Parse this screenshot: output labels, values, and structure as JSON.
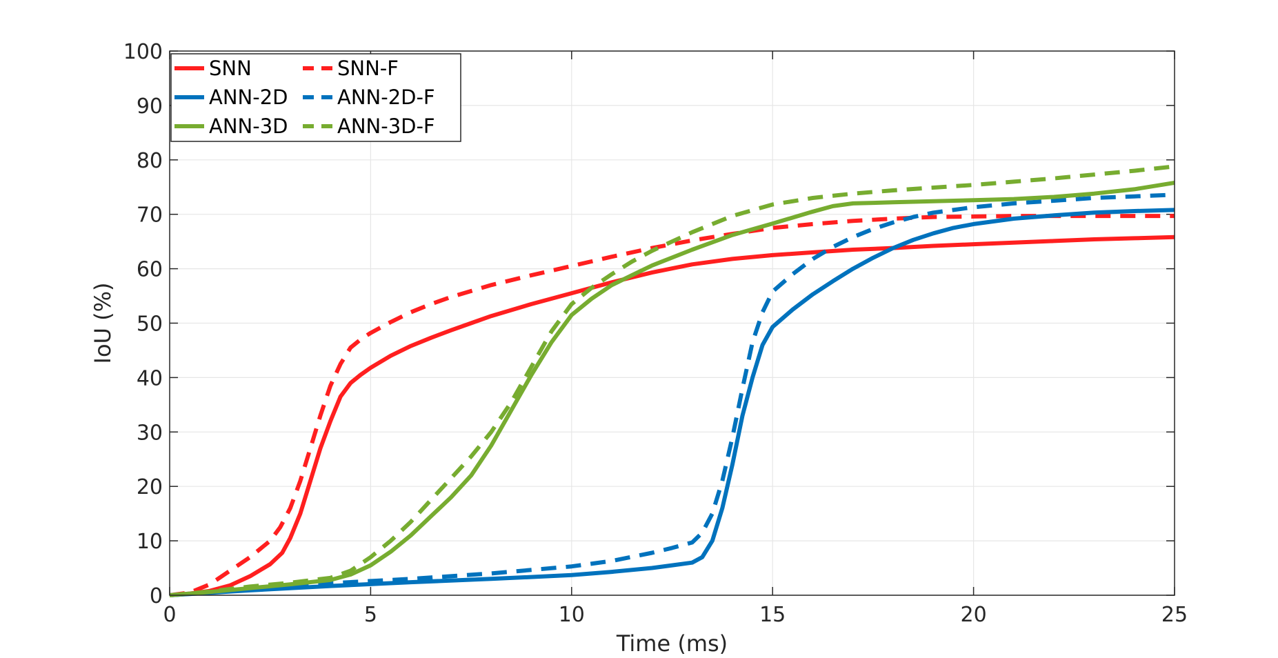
{
  "chart_data": {
    "type": "line",
    "title": "",
    "xlabel": "Time (ms)",
    "ylabel": "IoU (%)",
    "xlim": [
      0,
      25
    ],
    "ylim": [
      0,
      100
    ],
    "xticks": [
      0,
      5,
      10,
      15,
      20,
      25
    ],
    "yticks": [
      0,
      10,
      20,
      30,
      40,
      50,
      60,
      70,
      80,
      90,
      100
    ],
    "grid": true,
    "legend_position": "top-left",
    "series": [
      {
        "name": "SNN",
        "color": "#ff1f1f",
        "style": "solid",
        "points": [
          [
            0,
            0
          ],
          [
            0.5,
            0.3
          ],
          [
            1,
            0.8
          ],
          [
            1.5,
            1.8
          ],
          [
            2,
            3.5
          ],
          [
            2.5,
            5.7
          ],
          [
            2.8,
            7.8
          ],
          [
            3,
            10.5
          ],
          [
            3.25,
            15
          ],
          [
            3.5,
            21
          ],
          [
            3.75,
            27
          ],
          [
            4,
            32
          ],
          [
            4.25,
            36.5
          ],
          [
            4.5,
            39
          ],
          [
            4.75,
            40.5
          ],
          [
            5,
            41.8
          ],
          [
            5.5,
            44
          ],
          [
            6,
            45.8
          ],
          [
            6.5,
            47.3
          ],
          [
            7,
            48.7
          ],
          [
            7.5,
            50
          ],
          [
            8,
            51.3
          ],
          [
            9,
            53.5
          ],
          [
            10,
            55.5
          ],
          [
            11,
            57.5
          ],
          [
            12,
            59.3
          ],
          [
            13,
            60.8
          ],
          [
            14,
            61.8
          ],
          [
            15,
            62.5
          ],
          [
            16,
            63
          ],
          [
            17,
            63.5
          ],
          [
            18,
            63.8
          ],
          [
            19,
            64.2
          ],
          [
            20,
            64.5
          ],
          [
            21,
            64.8
          ],
          [
            22,
            65.1
          ],
          [
            23,
            65.4
          ],
          [
            24,
            65.6
          ],
          [
            25,
            65.8
          ]
        ]
      },
      {
        "name": "SNN-F",
        "color": "#ff1f1f",
        "style": "dashed",
        "points": [
          [
            0,
            0
          ],
          [
            0.5,
            0.5
          ],
          [
            1,
            2
          ],
          [
            1.5,
            4.5
          ],
          [
            2,
            7
          ],
          [
            2.5,
            10
          ],
          [
            2.75,
            12.5
          ],
          [
            3,
            16
          ],
          [
            3.25,
            21
          ],
          [
            3.5,
            27
          ],
          [
            3.75,
            33
          ],
          [
            4,
            38.5
          ],
          [
            4.25,
            42.5
          ],
          [
            4.5,
            45.5
          ],
          [
            4.75,
            47
          ],
          [
            5,
            48.2
          ],
          [
            5.5,
            50.2
          ],
          [
            6,
            52
          ],
          [
            6.5,
            53.5
          ],
          [
            7,
            54.8
          ],
          [
            8,
            57
          ],
          [
            9,
            58.8
          ],
          [
            10,
            60.5
          ],
          [
            11,
            62.2
          ],
          [
            12,
            63.8
          ],
          [
            13,
            65.2
          ],
          [
            14,
            66.4
          ],
          [
            15,
            67.5
          ],
          [
            16,
            68.2
          ],
          [
            17,
            68.8
          ],
          [
            18,
            69.2
          ],
          [
            19,
            69.5
          ],
          [
            20,
            69.6
          ],
          [
            21,
            69.7
          ],
          [
            22,
            69.7
          ],
          [
            23,
            69.7
          ],
          [
            24,
            69.7
          ],
          [
            25,
            69.7
          ]
        ]
      },
      {
        "name": "ANN-2D",
        "color": "#0072bd",
        "style": "solid",
        "points": [
          [
            0,
            0
          ],
          [
            2,
            0.9
          ],
          [
            4,
            1.7
          ],
          [
            6,
            2.4
          ],
          [
            8,
            3
          ],
          [
            10,
            3.7
          ],
          [
            11,
            4.3
          ],
          [
            12,
            5
          ],
          [
            12.5,
            5.5
          ],
          [
            13,
            6
          ],
          [
            13.25,
            7
          ],
          [
            13.5,
            10
          ],
          [
            13.75,
            16
          ],
          [
            14,
            24
          ],
          [
            14.25,
            33
          ],
          [
            14.5,
            40
          ],
          [
            14.75,
            46
          ],
          [
            15,
            49.3
          ],
          [
            15.5,
            52.5
          ],
          [
            16,
            55.3
          ],
          [
            16.5,
            57.7
          ],
          [
            17,
            60
          ],
          [
            17.5,
            62
          ],
          [
            18,
            63.8
          ],
          [
            18.5,
            65.3
          ],
          [
            19,
            66.5
          ],
          [
            19.5,
            67.5
          ],
          [
            20,
            68.2
          ],
          [
            21,
            69.2
          ],
          [
            22,
            69.8
          ],
          [
            23,
            70.3
          ],
          [
            24,
            70.6
          ],
          [
            25,
            70.8
          ]
        ]
      },
      {
        "name": "ANN-2D-F",
        "color": "#0072bd",
        "style": "dashed",
        "points": [
          [
            0,
            0
          ],
          [
            2,
            1
          ],
          [
            4,
            2.2
          ],
          [
            6,
            3
          ],
          [
            8,
            4
          ],
          [
            10,
            5.3
          ],
          [
            11,
            6.3
          ],
          [
            12,
            7.8
          ],
          [
            12.5,
            8.7
          ],
          [
            13,
            9.7
          ],
          [
            13.25,
            11.5
          ],
          [
            13.5,
            15
          ],
          [
            13.75,
            21
          ],
          [
            14,
            29
          ],
          [
            14.25,
            38
          ],
          [
            14.5,
            46.5
          ],
          [
            14.75,
            52
          ],
          [
            15,
            55.8
          ],
          [
            15.5,
            59
          ],
          [
            16,
            61.8
          ],
          [
            16.5,
            64
          ],
          [
            17,
            65.8
          ],
          [
            17.5,
            67.3
          ],
          [
            18,
            68.5
          ],
          [
            18.5,
            69.5
          ],
          [
            19,
            70.3
          ],
          [
            20,
            71.3
          ],
          [
            21,
            72
          ],
          [
            22,
            72.5
          ],
          [
            23,
            73
          ],
          [
            24,
            73.3
          ],
          [
            25,
            73.6
          ]
        ]
      },
      {
        "name": "ANN-3D",
        "color": "#77ac30",
        "style": "solid",
        "points": [
          [
            0,
            0
          ],
          [
            1,
            0.6
          ],
          [
            2,
            1.3
          ],
          [
            3,
            2
          ],
          [
            4,
            2.8
          ],
          [
            4.5,
            3.8
          ],
          [
            5,
            5.5
          ],
          [
            5.5,
            8
          ],
          [
            6,
            11
          ],
          [
            6.5,
            14.5
          ],
          [
            7,
            18
          ],
          [
            7.5,
            22
          ],
          [
            8,
            27.5
          ],
          [
            8.5,
            34
          ],
          [
            9,
            40.5
          ],
          [
            9.5,
            46.5
          ],
          [
            10,
            51.5
          ],
          [
            10.5,
            54.5
          ],
          [
            11,
            57
          ],
          [
            11.5,
            58.8
          ],
          [
            12,
            60.6
          ],
          [
            13,
            63.5
          ],
          [
            14,
            66.2
          ],
          [
            15,
            68.3
          ],
          [
            16,
            70.5
          ],
          [
            16.5,
            71.5
          ],
          [
            17,
            72
          ],
          [
            18,
            72.2
          ],
          [
            19,
            72.4
          ],
          [
            20,
            72.6
          ],
          [
            21,
            72.8
          ],
          [
            22,
            73.2
          ],
          [
            23,
            73.8
          ],
          [
            24,
            74.6
          ],
          [
            25,
            75.8
          ]
        ]
      },
      {
        "name": "ANN-3D-F",
        "color": "#77ac30",
        "style": "dashed",
        "points": [
          [
            0,
            0
          ],
          [
            1,
            0.7
          ],
          [
            2,
            1.6
          ],
          [
            3,
            2.3
          ],
          [
            4,
            3.2
          ],
          [
            4.5,
            4.5
          ],
          [
            5,
            7
          ],
          [
            5.5,
            10
          ],
          [
            6,
            13.5
          ],
          [
            6.5,
            17.5
          ],
          [
            7,
            21.5
          ],
          [
            7.5,
            25.5
          ],
          [
            8,
            30
          ],
          [
            8.5,
            35.5
          ],
          [
            9,
            42
          ],
          [
            9.5,
            48.5
          ],
          [
            10,
            53.5
          ],
          [
            10.5,
            56.5
          ],
          [
            11,
            59
          ],
          [
            11.5,
            61.3
          ],
          [
            12,
            63.3
          ],
          [
            13,
            66.7
          ],
          [
            14,
            69.7
          ],
          [
            15,
            71.8
          ],
          [
            16,
            73
          ],
          [
            17,
            73.8
          ],
          [
            18,
            74.4
          ],
          [
            19,
            74.9
          ],
          [
            20,
            75.4
          ],
          [
            21,
            76
          ],
          [
            22,
            76.6
          ],
          [
            23,
            77.3
          ],
          [
            24,
            78
          ],
          [
            25,
            78.8
          ]
        ]
      }
    ]
  }
}
